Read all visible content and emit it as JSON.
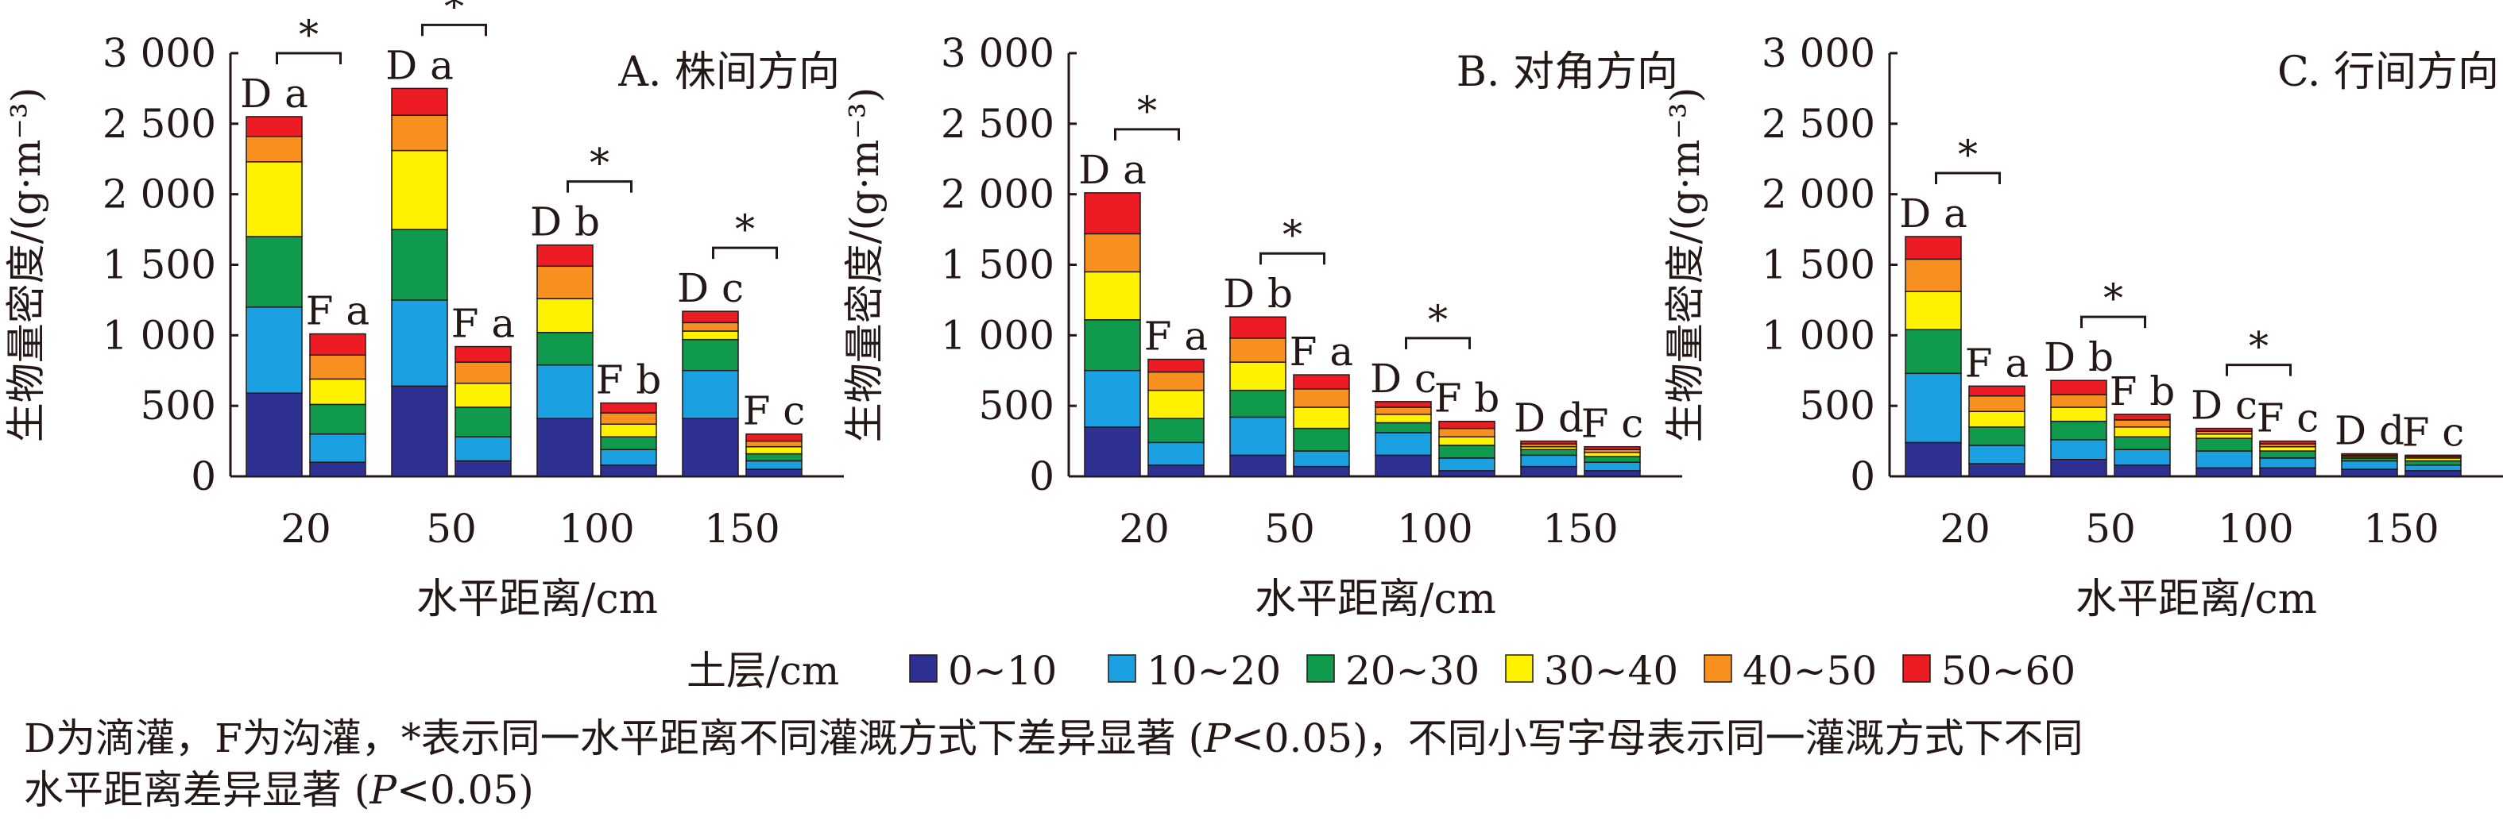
{
  "colors": [
    "#2e3192",
    "#1ba1e2",
    "#0f9a4d",
    "#fff200",
    "#f7901e",
    "#ed1c24"
  ],
  "legend": {
    "title": "土层/cm",
    "items": [
      "0~10",
      "10~20",
      "20~30",
      "30~40",
      "40~50",
      "50~60"
    ]
  },
  "note": {
    "line1_part1": "D为滴灌，F为沟灌，*表示同一水平距离不同灌溉方式下差异显著 (",
    "p": "P",
    "line1_part2": "<0.05)，不同小写字母表示同一灌溉方式下不同",
    "line2_part1": "水平距离差异显著 (",
    "line2_part2": "<0.05)"
  },
  "chart_data": [
    {
      "type": "bar",
      "stacked": true,
      "title": "A. 株间方向",
      "xlabel": "水平距离/cm",
      "ylabel": "生物量密度/(g·m⁻³)",
      "ylim": [
        0,
        3000
      ],
      "yticks": [
        0,
        500,
        1000,
        1500,
        2000,
        2500,
        3000
      ],
      "ytick_labels": [
        "0",
        "500",
        "1 000",
        "1 500",
        "2 000",
        "2 500",
        "3 000"
      ],
      "categories": [
        "20",
        "50",
        "100",
        "150"
      ],
      "groups": [
        {
          "name": "D",
          "bars": [
            {
              "layers": [
                590,
                610,
                500,
                530,
                180,
                140
              ],
              "label": "D a"
            },
            {
              "layers": [
                640,
                610,
                500,
                560,
                250,
                190
              ],
              "label": "D a"
            },
            {
              "layers": [
                410,
                380,
                230,
                240,
                230,
                150
              ],
              "label": "D b"
            },
            {
              "layers": [
                410,
                340,
                220,
                60,
                60,
                80
              ],
              "label": "D c"
            }
          ]
        },
        {
          "name": "F",
          "bars": [
            {
              "layers": [
                100,
                200,
                210,
                180,
                170,
                150
              ],
              "label": "F a"
            },
            {
              "layers": [
                110,
                170,
                210,
                170,
                150,
                110
              ],
              "label": "F a"
            },
            {
              "layers": [
                80,
                110,
                90,
                90,
                80,
                70
              ],
              "label": "F b"
            },
            {
              "layers": [
                50,
                60,
                50,
                50,
                40,
                50
              ],
              "label": "F c"
            }
          ]
        }
      ],
      "significance": [
        "*",
        "*",
        "*",
        "*"
      ]
    },
    {
      "type": "bar",
      "stacked": true,
      "title": "B. 对角方向",
      "xlabel": "水平距离/cm",
      "ylabel": "生物量密度/(g·m⁻³)",
      "ylim": [
        0,
        3000
      ],
      "yticks": [
        0,
        500,
        1000,
        1500,
        2000,
        2500,
        3000
      ],
      "ytick_labels": [
        "0",
        "500",
        "1 000",
        "1 500",
        "2 000",
        "2 500",
        "3 000"
      ],
      "categories": [
        "20",
        "50",
        "100",
        "150"
      ],
      "groups": [
        {
          "name": "D",
          "bars": [
            {
              "layers": [
                350,
                400,
                360,
                340,
                270,
                290
              ],
              "label": "D a"
            },
            {
              "layers": [
                150,
                270,
                190,
                200,
                170,
                150
              ],
              "label": "D b"
            },
            {
              "layers": [
                150,
                160,
                70,
                60,
                50,
                40
              ],
              "label": "D c"
            },
            {
              "layers": [
                70,
                80,
                40,
                20,
                20,
                20
              ],
              "label": "D d"
            }
          ]
        },
        {
          "name": "F",
          "bars": [
            {
              "layers": [
                80,
                160,
                170,
                200,
                130,
                90
              ],
              "label": "F a"
            },
            {
              "layers": [
                70,
                110,
                160,
                150,
                130,
                100
              ],
              "label": "F a"
            },
            {
              "layers": [
                40,
                90,
                90,
                60,
                60,
                50
              ],
              "label": "F b"
            },
            {
              "layers": [
                40,
                60,
                40,
                30,
                20,
                20
              ],
              "label": "F c"
            }
          ]
        }
      ],
      "significance": [
        "*",
        "*",
        "*",
        ""
      ]
    },
    {
      "type": "bar",
      "stacked": true,
      "title": "C. 行间方向",
      "xlabel": "水平距离/cm",
      "ylabel": "生物量密度/(g·m⁻³)",
      "ylim": [
        0,
        3000
      ],
      "yticks": [
        0,
        500,
        1000,
        1500,
        2000,
        2500,
        3000
      ],
      "ytick_labels": [
        "0",
        "500",
        "1 000",
        "1 500",
        "2 000",
        "2 500",
        "3 000"
      ],
      "categories": [
        "20",
        "50",
        "100",
        "150"
      ],
      "groups": [
        {
          "name": "D",
          "bars": [
            {
              "layers": [
                240,
                490,
                310,
                270,
                230,
                160
              ],
              "label": "D a"
            },
            {
              "layers": [
                120,
                140,
                130,
                100,
                90,
                100
              ],
              "label": "D b"
            },
            {
              "layers": [
                60,
                120,
                90,
                30,
                20,
                20
              ],
              "label": "D c"
            },
            {
              "layers": [
                50,
                60,
                20,
                10,
                10,
                10
              ],
              "label": "D d"
            }
          ]
        },
        {
          "name": "F",
          "bars": [
            {
              "layers": [
                90,
                130,
                130,
                110,
                110,
                70
              ],
              "label": "F a"
            },
            {
              "layers": [
                80,
                110,
                90,
                70,
                50,
                40
              ],
              "label": "F b"
            },
            {
              "layers": [
                60,
                70,
                50,
                30,
                20,
                20
              ],
              "label": "F c"
            },
            {
              "layers": [
                40,
                40,
                30,
                20,
                10,
                10
              ],
              "label": "F c"
            }
          ]
        }
      ],
      "significance": [
        "*",
        "*",
        "*",
        ""
      ]
    }
  ]
}
